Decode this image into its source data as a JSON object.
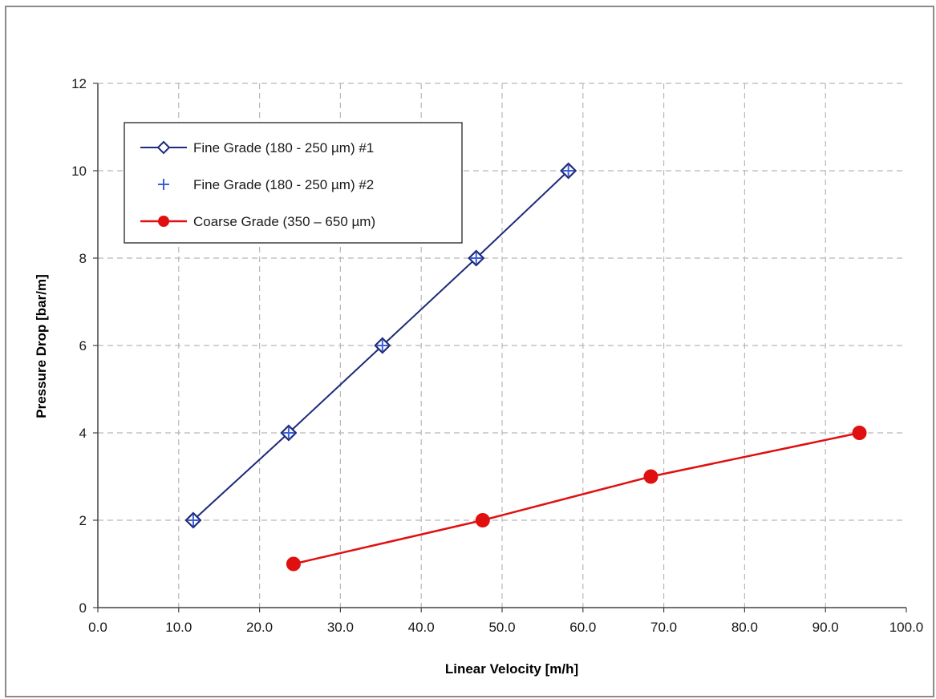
{
  "chart_data": {
    "type": "line",
    "title": "",
    "xlabel": "Linear Velocity [m/h]",
    "ylabel": "Pressure Drop [bar/m]",
    "xlim": [
      0,
      100
    ],
    "ylim": [
      0,
      12
    ],
    "x_ticks": [
      "0.0",
      "10.0",
      "20.0",
      "30.0",
      "40.0",
      "50.0",
      "60.0",
      "70.0",
      "80.0",
      "90.0",
      "100.0"
    ],
    "y_ticks": [
      "0",
      "2",
      "4",
      "6",
      "8",
      "10",
      "12"
    ],
    "grid": true,
    "legend_position": "top-left",
    "series": [
      {
        "name": "Fine Grade (180 - 250 µm) #1",
        "color": "#1f2a7a",
        "marker": "diamond-open",
        "line": true,
        "x": [
          11.8,
          23.6,
          35.2,
          46.8,
          58.2
        ],
        "y": [
          2,
          4,
          6,
          8,
          10
        ]
      },
      {
        "name": "Fine Grade (180 - 250 µm) #2",
        "color": "#3b5fd9",
        "marker": "plus",
        "line": false,
        "x": [
          11.8,
          23.6,
          35.2,
          46.8,
          58.2
        ],
        "y": [
          2,
          4,
          6,
          8,
          10
        ]
      },
      {
        "name": "Coarse Grade (350 – 650 µm)",
        "color": "#e01010",
        "marker": "circle-filled",
        "line": true,
        "x": [
          24.2,
          47.6,
          68.4,
          94.2
        ],
        "y": [
          1,
          2,
          3,
          4
        ]
      }
    ]
  }
}
